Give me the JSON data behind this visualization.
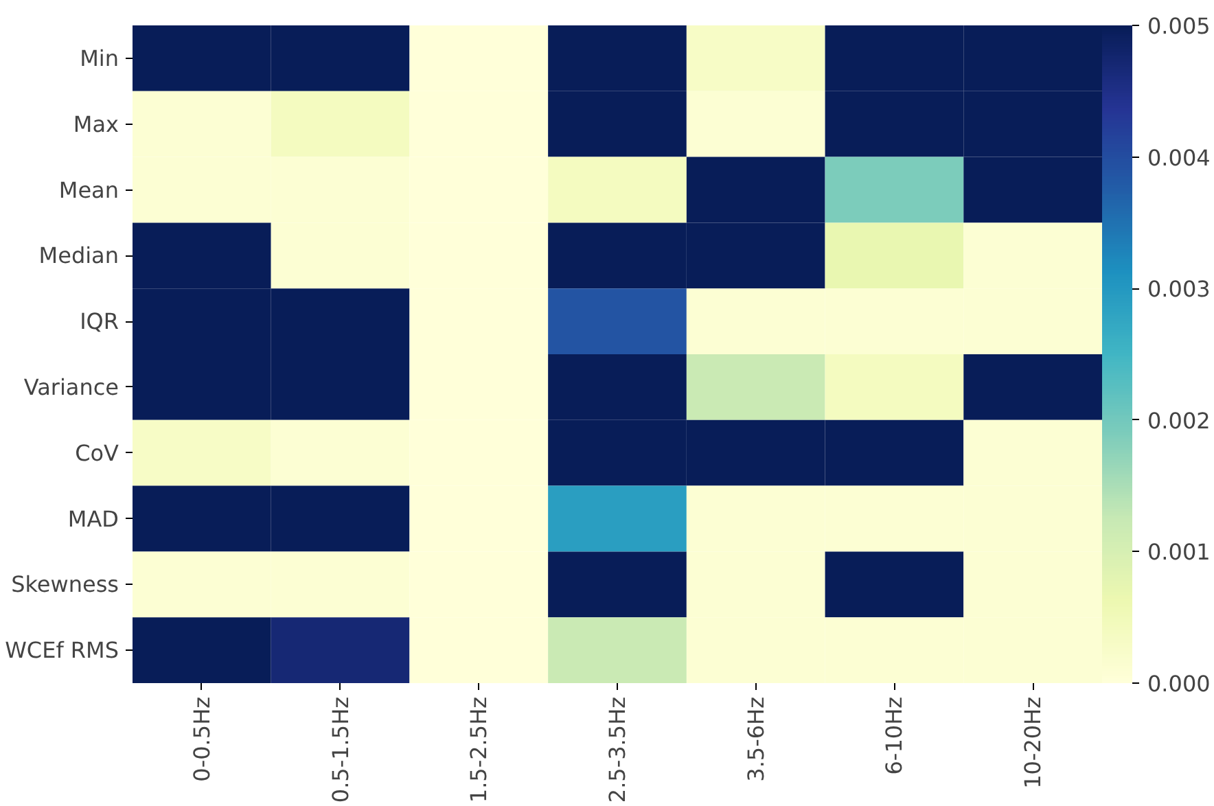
{
  "chart_data": {
    "type": "heatmap",
    "categories": [
      "0-0.5Hz",
      "0.5-1.5Hz",
      "1.5-2.5Hz",
      "2.5-3.5Hz",
      "3.5-6Hz",
      "6-10Hz",
      "10-20Hz"
    ],
    "y_categories": [
      "Min",
      "Max",
      "Mean",
      "Median",
      "IQR",
      "Variance",
      "CoV",
      "MAD",
      "Skewness",
      "WCEf RMS"
    ],
    "cells": [
      [
        0.005,
        0.005,
        0,
        0.005,
        0.0003,
        0.005,
        0.005
      ],
      [
        0.0001,
        0.0004,
        0,
        0.005,
        0.0001,
        0.005,
        0.005
      ],
      [
        0.0001,
        0.0001,
        0,
        0.0004,
        0.005,
        0.0019,
        0.005
      ],
      [
        0.005,
        0.0001,
        0,
        0.005,
        0.005,
        0.0007,
        0.0001
      ],
      [
        0.005,
        0.005,
        0,
        0.0039,
        0.0001,
        0.0001,
        0.0001
      ],
      [
        0.005,
        0.005,
        0,
        0.005,
        0.0012,
        0.0004,
        0.005
      ],
      [
        0.0003,
        0.0001,
        0,
        0.005,
        0.005,
        0.005,
        0.0001
      ],
      [
        0.005,
        0.005,
        0,
        0.0029,
        0.0001,
        0.0001,
        0.0001
      ],
      [
        0.0001,
        0.0001,
        0,
        0.005,
        0.0001,
        0.005,
        0.0001
      ],
      [
        0.005,
        0.0047,
        0,
        0.0012,
        0.0001,
        0.0001,
        0.0001
      ]
    ],
    "clim": [
      0,
      0.005
    ],
    "cticks": [
      {
        "value": 0,
        "label": "0.000"
      },
      {
        "value": 0.001,
        "label": "0.001"
      },
      {
        "value": 0.002,
        "label": "0.002"
      },
      {
        "value": 0.003,
        "label": "0.003"
      },
      {
        "value": 0.004,
        "label": "0.004"
      },
      {
        "value": 0.005,
        "label": "0.005"
      }
    ]
  }
}
